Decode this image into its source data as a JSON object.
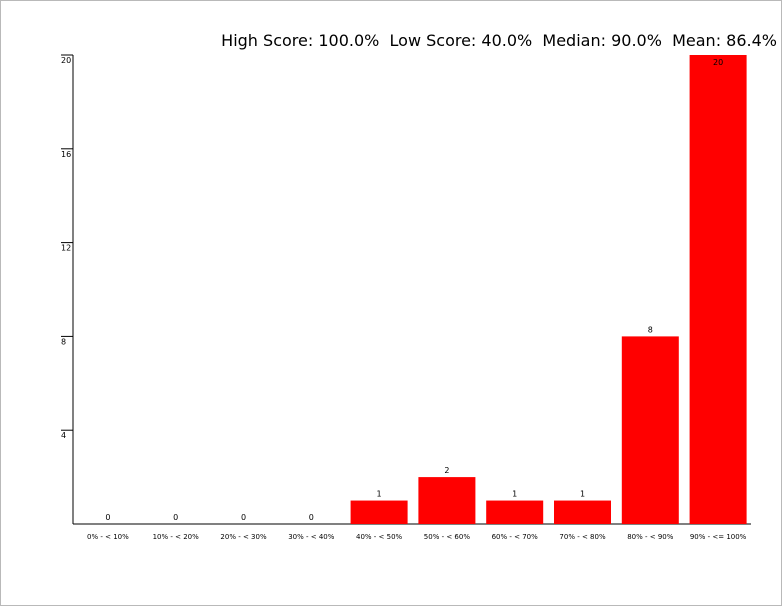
{
  "summary": {
    "high_score_label": "High Score:",
    "high_score": "100.0%",
    "low_score_label": "Low Score:",
    "low_score": "40.0%",
    "median_label": "Median:",
    "median": "90.0%",
    "mean_label": "Mean:",
    "mean": "86.4%"
  },
  "chart_data": {
    "type": "bar",
    "categories": [
      "0% - < 10%",
      "10% - < 20%",
      "20% - < 30%",
      "30% - < 40%",
      "40% - < 50%",
      "50% - < 60%",
      "60% - < 70%",
      "70% - < 80%",
      "80% - < 90%",
      "90% - <= 100%"
    ],
    "values": [
      0,
      0,
      0,
      0,
      1,
      2,
      1,
      1,
      8,
      20
    ],
    "value_labels": [
      "0",
      "0",
      "0",
      "0",
      "1",
      "2",
      "1",
      "1",
      "8",
      "20"
    ],
    "ylim": [
      0,
      20
    ],
    "y_ticks": [
      4,
      8,
      12,
      16,
      20
    ],
    "y_tick_labels": [
      "4",
      "8",
      "12",
      "16",
      "20"
    ],
    "bar_color": "#ff0000",
    "grid": false,
    "legend": "none"
  }
}
